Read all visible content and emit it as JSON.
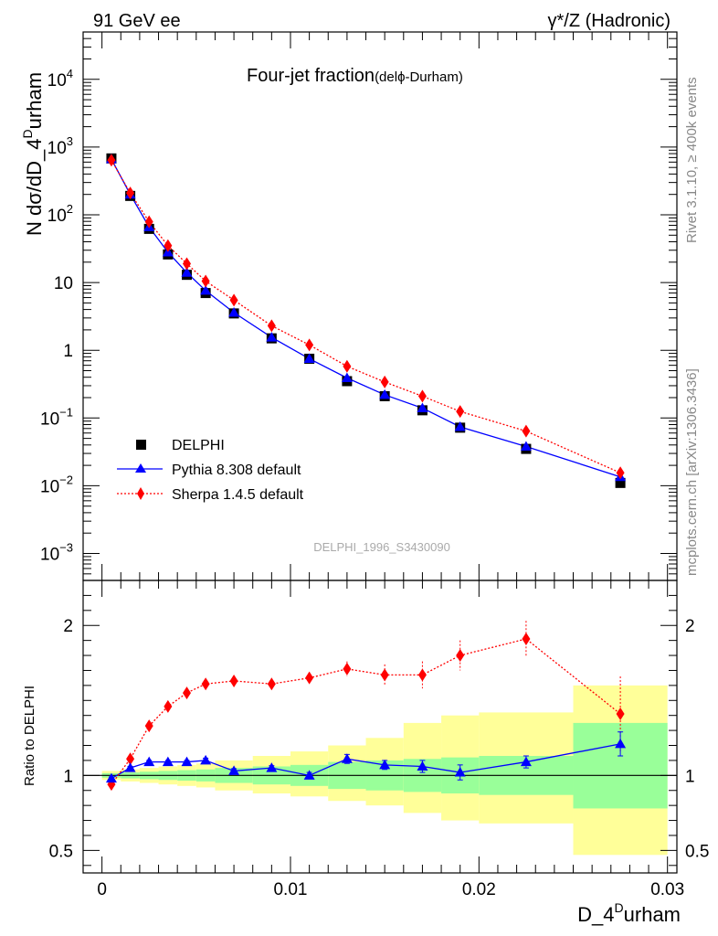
{
  "header": {
    "left": "91 GeV ee",
    "right": "γ*/Z (Hadronic)"
  },
  "side_labels": {
    "rivet": "Rivet 3.1.10, ≥ 400k events",
    "mcplots": "mcplots.cern.ch [arXiv:1306.3436]"
  },
  "chart_data": {
    "type": "line",
    "title": "Four-jet fraction",
    "title_sub": "(delϕ-Durham)",
    "watermark": "DELPHI_1996_S3430090",
    "xlabel_main": "D_4",
    "xlabel_sup": "D",
    "xlabel_tail": "urham",
    "ylabel_main": "N dσ/dD_4",
    "ylabel_sup": "D",
    "ylabel_tail": "urham",
    "ratio_ylabel": "Ratio to DELPHI",
    "x": [
      0.0005,
      0.0015,
      0.0025,
      0.0035,
      0.0045,
      0.0055,
      0.007,
      0.009,
      0.011,
      0.013,
      0.015,
      0.017,
      0.019,
      0.0225,
      0.0275
    ],
    "bin_edges": [
      0,
      0.001,
      0.002,
      0.003,
      0.004,
      0.005,
      0.006,
      0.008,
      0.01,
      0.012,
      0.014,
      0.016,
      0.018,
      0.02,
      0.025,
      0.03
    ],
    "xlim": [
      -0.001,
      0.0305
    ],
    "xticks": [
      0,
      0.01,
      0.02,
      0.03
    ],
    "xtick_labels": [
      "0",
      "0.01",
      "0.02",
      "0.03"
    ],
    "ylim_log": [
      0.0004,
      50000
    ],
    "yticks": [
      {
        "value": 0.001,
        "base": "10",
        "exp": "−3"
      },
      {
        "value": 0.01,
        "base": "10",
        "exp": "−2"
      },
      {
        "value": 0.1,
        "base": "10",
        "exp": "−1"
      },
      {
        "value": 1,
        "base": "1",
        "exp": ""
      },
      {
        "value": 10,
        "base": "10",
        "exp": ""
      },
      {
        "value": 100,
        "base": "10",
        "exp": "2"
      },
      {
        "value": 1000,
        "base": "10",
        "exp": "3"
      },
      {
        "value": 10000,
        "base": "10",
        "exp": "4"
      }
    ],
    "series": [
      {
        "name": "DELPHI",
        "color": "#000000",
        "marker": "square",
        "values": [
          680,
          190,
          62,
          26,
          13,
          7.0,
          3.5,
          1.5,
          0.75,
          0.35,
          0.21,
          0.13,
          0.072,
          0.035,
          0.011
        ]
      },
      {
        "name": "Pythia 8.308 default",
        "color": "#0000ff",
        "marker": "triangle",
        "values": [
          665,
          200,
          66,
          28,
          14,
          7.6,
          3.6,
          1.55,
          0.75,
          0.39,
          0.22,
          0.14,
          0.074,
          0.038,
          0.0135
        ]
      },
      {
        "name": "Sherpa 1.4.5 default",
        "color": "#ff0000",
        "marker": "diamond",
        "values": [
          640,
          210,
          79,
          35,
          19,
          10.5,
          5.5,
          2.3,
          1.2,
          0.58,
          0.34,
          0.21,
          0.125,
          0.064,
          0.0155
        ]
      }
    ],
    "ratio": {
      "ylim": [
        0.35,
        2.3
      ],
      "yticks": [
        0.5,
        1,
        2
      ],
      "ytick_labels": [
        "0.5",
        "1",
        "2"
      ],
      "pythia": [
        0.98,
        1.05,
        1.09,
        1.09,
        1.09,
        1.1,
        1.03,
        1.05,
        1.0,
        1.11,
        1.07,
        1.06,
        1.02,
        1.09,
        1.21
      ],
      "pythia_err": [
        0.01,
        0.01,
        0.01,
        0.01,
        0.01,
        0.015,
        0.015,
        0.015,
        0.02,
        0.03,
        0.03,
        0.04,
        0.05,
        0.04,
        0.08
      ],
      "sherpa": [
        0.94,
        1.11,
        1.33,
        1.46,
        1.55,
        1.61,
        1.63,
        1.61,
        1.65,
        1.71,
        1.67,
        1.67,
        1.8,
        1.91,
        1.41
      ],
      "sherpa_err": [
        0.01,
        0.01,
        0.01,
        0.01,
        0.02,
        0.02,
        0.02,
        0.02,
        0.03,
        0.05,
        0.07,
        0.09,
        0.1,
        0.12,
        0.25
      ],
      "band_inner": [
        [
          0.985,
          1.015
        ],
        [
          0.98,
          1.02
        ],
        [
          0.975,
          1.025
        ],
        [
          0.97,
          1.03
        ],
        [
          0.965,
          1.035
        ],
        [
          0.96,
          1.04
        ],
        [
          0.95,
          1.05
        ],
        [
          0.94,
          1.06
        ],
        [
          0.93,
          1.07
        ],
        [
          0.91,
          1.09
        ],
        [
          0.9,
          1.1
        ],
        [
          0.89,
          1.11
        ],
        [
          0.88,
          1.12
        ],
        [
          0.87,
          1.13
        ],
        [
          0.78,
          1.35
        ]
      ],
      "band_outer": [
        [
          0.97,
          1.03
        ],
        [
          0.96,
          1.04
        ],
        [
          0.95,
          1.05
        ],
        [
          0.94,
          1.06
        ],
        [
          0.93,
          1.07
        ],
        [
          0.92,
          1.08
        ],
        [
          0.9,
          1.1
        ],
        [
          0.88,
          1.13
        ],
        [
          0.86,
          1.16
        ],
        [
          0.83,
          1.2
        ],
        [
          0.8,
          1.25
        ],
        [
          0.75,
          1.35
        ],
        [
          0.7,
          1.4
        ],
        [
          0.68,
          1.42
        ],
        [
          0.47,
          1.6
        ]
      ],
      "band_inner_color": "#99ff99",
      "band_outer_color": "#ffff99"
    }
  }
}
